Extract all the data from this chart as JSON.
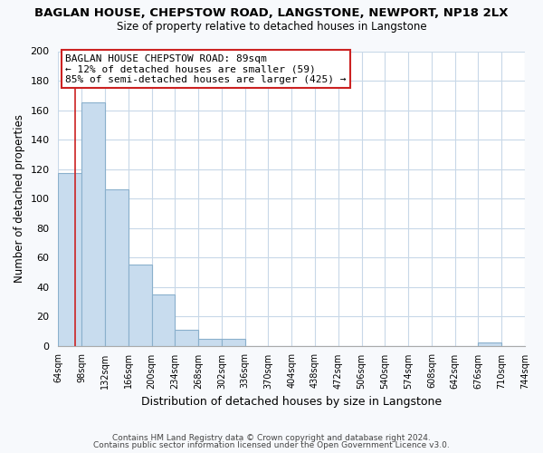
{
  "title": "BAGLAN HOUSE, CHEPSTOW ROAD, LANGSTONE, NEWPORT, NP18 2LX",
  "subtitle": "Size of property relative to detached houses in Langstone",
  "xlabel": "Distribution of detached houses by size in Langstone",
  "ylabel": "Number of detached properties",
  "bar_values": [
    117,
    165,
    106,
    55,
    35,
    11,
    5,
    5,
    0,
    0,
    0,
    0,
    0,
    0,
    0,
    0,
    0,
    0,
    2,
    0
  ],
  "bar_labels": [
    "64sqm",
    "98sqm",
    "132sqm",
    "166sqm",
    "200sqm",
    "234sqm",
    "268sqm",
    "302sqm",
    "336sqm",
    "370sqm",
    "404sqm",
    "438sqm",
    "472sqm",
    "506sqm",
    "540sqm",
    "574sqm",
    "608sqm",
    "642sqm",
    "676sqm",
    "710sqm",
    "744sqm"
  ],
  "bar_color": "#c8dcee",
  "bar_edge_color": "#8ab0cc",
  "marker_line_color": "#cc2222",
  "ylim": [
    0,
    200
  ],
  "yticks": [
    0,
    20,
    40,
    60,
    80,
    100,
    120,
    140,
    160,
    180,
    200
  ],
  "annotation_title": "BAGLAN HOUSE CHEPSTOW ROAD: 89sqm",
  "annotation_line1": "← 12% of detached houses are smaller (59)",
  "annotation_line2": "85% of semi-detached houses are larger (425) →",
  "footer1": "Contains HM Land Registry data © Crown copyright and database right 2024.",
  "footer2": "Contains public sector information licensed under the Open Government Licence v3.0.",
  "background_color": "#f7f9fc",
  "plot_background_color": "#ffffff",
  "grid_color": "#c8d8e8"
}
